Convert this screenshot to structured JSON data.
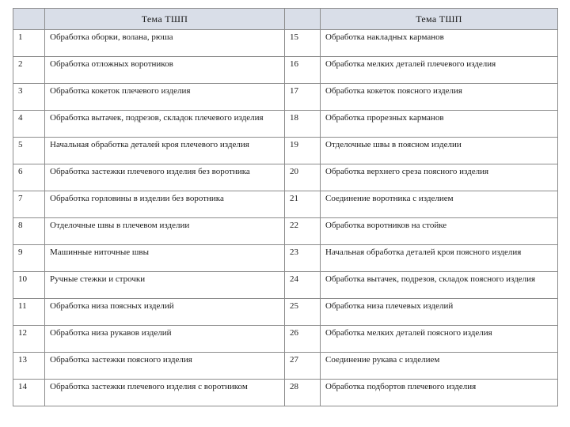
{
  "table": {
    "headers": [
      "",
      "Тема ТШП",
      "",
      "Тема ТШП"
    ],
    "rows": [
      [
        "1",
        "Обработка оборки, волана, рюша",
        "15",
        "Обработка накладных карманов"
      ],
      [
        "2",
        "Обработка отложных воротников",
        "16",
        "Обработка мелких деталей плечевого изделия"
      ],
      [
        "3",
        "Обработка кокеток плечевого изделия",
        "17",
        "Обработка кокеток поясного изделия"
      ],
      [
        "4",
        "Обработка вытачек, подрезов, складок плечевого изделия",
        "18",
        "Обработка прорезных карманов"
      ],
      [
        "5",
        "Начальная обработка деталей кроя плечевого изделия",
        "19",
        "Отделочные швы в поясном изделии"
      ],
      [
        "6",
        "Обработка застежки плечевого изделия без воротника",
        "20",
        "Обработка верхнего среза поясного изделия"
      ],
      [
        "7",
        "Обработка горловины в изделии без воротника",
        "21",
        "Соединение воротника с изделием"
      ],
      [
        "8",
        "Отделочные швы в плечевом изделии",
        "22",
        "Обработка воротников на стойке"
      ],
      [
        "9",
        "Машинные ниточные швы",
        "23",
        "Начальная обработка деталей кроя поясного изделия"
      ],
      [
        "10",
        "Ручные стежки и строчки",
        "24",
        "Обработка вытачек, подрезов, складок поясного изделия"
      ],
      [
        "11",
        "Обработка низа поясных изделий",
        "25",
        "Обработка низа плечевых изделий"
      ],
      [
        "12",
        "Обработка низа рукавов изделий",
        "26",
        "Обработка мелких деталей поясного изделия"
      ],
      [
        "13",
        "Обработка застежки поясного изделия",
        "27",
        "Соединение рукава с изделием"
      ],
      [
        "14",
        "Обработка застежки плечевого изделия с воротником",
        "28",
        "Обработка подбортов плечевого изделия"
      ]
    ]
  }
}
